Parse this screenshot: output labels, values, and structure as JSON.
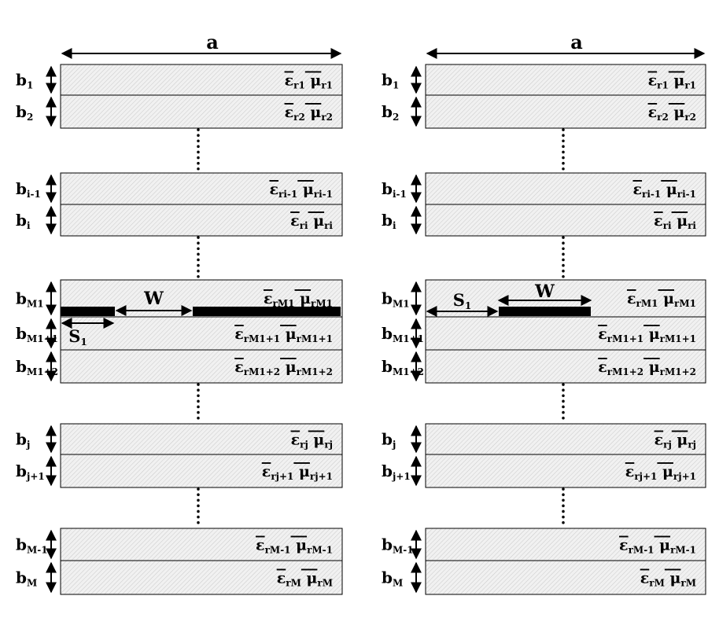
{
  "width_label": "a",
  "gap_label": "W",
  "offset_label": "S",
  "offset_sub": "1",
  "eps_symbol": "ε",
  "mu_symbol": "μ",
  "layers": [
    {
      "thick": "b",
      "thick_sub": "1",
      "sub": "r1"
    },
    {
      "thick": "b",
      "thick_sub": "2",
      "sub": "r2"
    },
    {
      "thick": "b",
      "thick_sub": "i-1",
      "sub": "ri-1"
    },
    {
      "thick": "b",
      "thick_sub": "i",
      "sub": "ri"
    },
    {
      "thick": "b",
      "thick_sub": "M1",
      "sub": "rM1"
    },
    {
      "thick": "b",
      "thick_sub": "M1+1",
      "sub": "rM1+1"
    },
    {
      "thick": "b",
      "thick_sub": "M1+2",
      "sub": "rM1+2"
    },
    {
      "thick": "b",
      "thick_sub": "j",
      "sub": "rj"
    },
    {
      "thick": "b",
      "thick_sub": "j+1",
      "sub": "rj+1"
    },
    {
      "thick": "b",
      "thick_sub": "M-1",
      "sub": "rM-1"
    },
    {
      "thick": "b",
      "thick_sub": "M",
      "sub": "rM"
    }
  ]
}
